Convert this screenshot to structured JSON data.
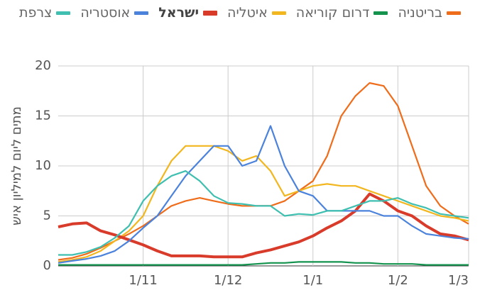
{
  "chart_data": {
    "type": "line",
    "y_label": "מתים ליום למיליון איש",
    "categories": [
      null,
      null,
      null,
      null,
      null,
      null,
      "1/11",
      null,
      null,
      null,
      null,
      null,
      "1/12",
      null,
      null,
      null,
      null,
      null,
      "1/1",
      null,
      null,
      null,
      null,
      null,
      "1/2",
      null,
      null,
      null,
      null,
      "1/3"
    ],
    "series": [
      {
        "name": "בריטניה",
        "color": "#ef6c1a",
        "values": [
          0.6,
          0.8,
          1.2,
          1.8,
          2.5,
          3.2,
          4,
          5,
          6,
          6.5,
          6.8,
          6.5,
          6.2,
          6,
          6,
          6,
          6.5,
          7.5,
          8.5,
          11,
          15,
          17,
          18.3,
          18,
          16,
          12,
          8,
          6,
          5,
          4.2
        ]
      },
      {
        "name": "דרום קוריאה",
        "color": "#14934f",
        "values": [
          0.1,
          0.1,
          0.1,
          0.1,
          0.1,
          0.1,
          0.1,
          0.1,
          0.1,
          0.1,
          0.1,
          0.1,
          0.1,
          0.1,
          0.2,
          0.3,
          0.3,
          0.4,
          0.4,
          0.4,
          0.4,
          0.3,
          0.3,
          0.2,
          0.2,
          0.2,
          0.1,
          0.1,
          0.1,
          0.1
        ]
      },
      {
        "name": "איטליה",
        "color": "#f2b61f",
        "values": [
          0.4,
          0.6,
          0.9,
          1.5,
          2.5,
          3.5,
          5,
          8,
          10.5,
          12,
          12,
          12,
          11.5,
          10.5,
          11,
          9.5,
          7,
          7.5,
          8,
          8.2,
          8,
          8,
          7.5,
          7,
          6.5,
          6,
          5.5,
          5,
          4.8,
          4.5
        ]
      },
      {
        "name": "ישראל",
        "color": "#d93b2b",
        "bold": true,
        "values": [
          3.9,
          4.2,
          4.3,
          3.5,
          3.1,
          2.6,
          2.1,
          1.5,
          1,
          1,
          1,
          0.9,
          0.9,
          0.9,
          1.3,
          1.6,
          2,
          2.4,
          3,
          3.8,
          4.5,
          5.5,
          7.2,
          6.5,
          5.5,
          5,
          4,
          3.2,
          3,
          2.6
        ]
      },
      {
        "name": "אוסטריה",
        "color": "#4b82dc",
        "values": [
          0.3,
          0.5,
          0.7,
          1,
          1.5,
          2.5,
          3.8,
          5,
          7,
          9,
          10.5,
          12,
          12,
          10,
          10.5,
          14,
          10,
          7.5,
          7,
          5.5,
          5.5,
          5.5,
          5.5,
          5,
          5,
          4,
          3.2,
          3,
          2.8,
          2.7
        ]
      },
      {
        "name": "צרפת",
        "color": "#3fbfb0",
        "values": [
          1.1,
          1.1,
          1.4,
          1.9,
          2.8,
          4,
          6.5,
          8,
          9,
          9.5,
          8.5,
          7,
          6.3,
          6.2,
          6,
          6,
          5,
          5.2,
          5.1,
          5.5,
          5.5,
          6,
          6.5,
          6.5,
          6.8,
          6.2,
          5.8,
          5.2,
          5,
          4.8
        ]
      }
    ],
    "ylim": [
      0,
      20
    ],
    "yticks": [
      0,
      5,
      10,
      15,
      20
    ],
    "grid": true
  }
}
